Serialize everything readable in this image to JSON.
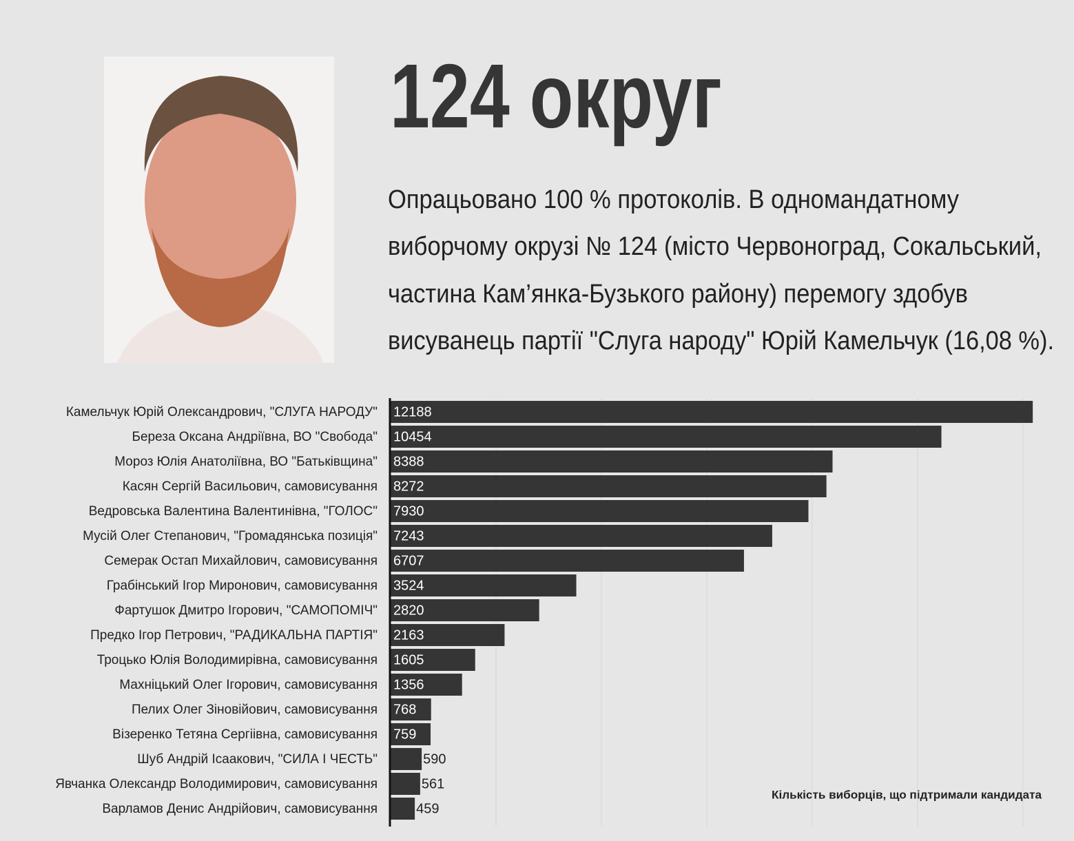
{
  "header": {
    "title": "124 округ",
    "summary_lines": [
      "Опрацьовано 100 % протоколів. В одномандатному",
      "виборчому окрузі № 124 (місто Червоноград, Сокальський,",
      "частина Кам’янка-Бузького району) перемогу здобув",
      "висуванець партії \"Слуга народу\" Юрій Камельчук (16,08 %)."
    ]
  },
  "chart_data": {
    "type": "bar",
    "orientation": "horizontal",
    "categories": [
      "Камельчук Юрій Олександрович, \"СЛУГА НАРОДУ\"",
      "Береза Оксана Андріївна, ВО \"Свобода\"",
      "Мороз Юлія Анатоліївна, ВО \"Батьківщина\"",
      "Касян Сергій Васильович, самовисування",
      "Ведровська Валентина Валентинівна, \"ГОЛОС\"",
      "Мусій Олег Степанович, \"Громадянська позиція\"",
      "Семерак Остап Михайлович, самовисування",
      "Грабінський Ігор Миронович, самовисування",
      "Фартушок Дмитро Ігорович, \"САМОПОМІЧ\"",
      "Предко Ігор Петрович, \"РАДИКАЛЬНА ПАРТІЯ\"",
      "Троцько Юлія Володимирівна, самовисування",
      "Махніцький Олег Ігорович, самовисування",
      "Пелих Олег Зіновійович, самовисування",
      "Візеренко Тетяна Сергіівна, самовисування",
      "Шуб Андрій Ісаакович, \"СИЛА І ЧЕСТЬ\"",
      "Явчанка Олександр Володимирович, самовисування",
      "Варламов Денис Андрійович, самовисування"
    ],
    "values": [
      12188,
      10454,
      8388,
      8272,
      7930,
      7243,
      6707,
      3524,
      2820,
      2163,
      1605,
      1356,
      768,
      759,
      590,
      561,
      459
    ],
    "color": "#353535",
    "xlim": [
      0,
      12500
    ],
    "xticks": [
      2000,
      4000,
      6000,
      8000,
      10000,
      12000
    ],
    "grid": true,
    "note": "Кількість виборців, що підтримали кандидата"
  }
}
